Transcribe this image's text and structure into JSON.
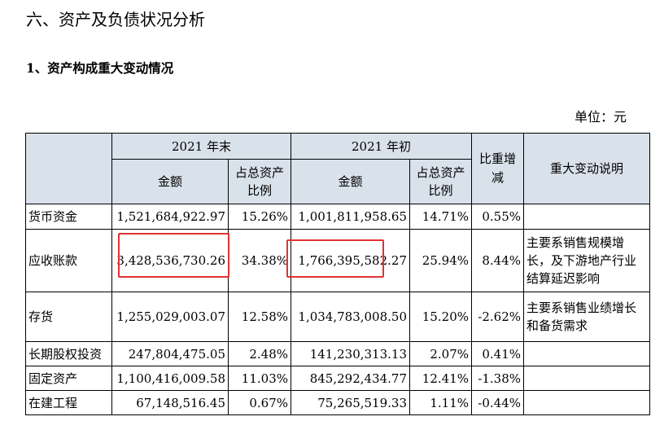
{
  "section_title": "六、资产及负债状况分析",
  "subsection_title": "1、资产构成重大变动情况",
  "unit": "单位：元",
  "table": {
    "header": {
      "year_end": "2021 年末",
      "year_start": "2021 年初",
      "amount": "金额",
      "ratio": "占总资产比例",
      "change": "比重增减",
      "explain": "重大变动说明"
    },
    "rows": [
      {
        "item": "货币资金",
        "end_amount": "1,521,684,922.97",
        "end_ratio": "15.26%",
        "start_amount": "1,001,811,958.65",
        "start_ratio": "14.71%",
        "change": "0.55%",
        "note": ""
      },
      {
        "item": "应收账款",
        "end_amount": "3,428,536,730.26",
        "end_ratio": "34.38%",
        "start_amount": "1,766,395,582.27",
        "start_ratio": "25.94%",
        "change": "8.44%",
        "note": "主要系销售规模增长，及下游地产行业结算延迟影响"
      },
      {
        "item": "存货",
        "end_amount": "1,255,029,003.07",
        "end_ratio": "12.58%",
        "start_amount": "1,034,783,008.50",
        "start_ratio": "15.20%",
        "change": "-2.62%",
        "note": "主要系销售业绩增长和备货需求"
      },
      {
        "item": "长期股权投资",
        "end_amount": "247,804,475.05",
        "end_ratio": "2.48%",
        "start_amount": "141,230,313.13",
        "start_ratio": "2.07%",
        "change": "0.41%",
        "note": ""
      },
      {
        "item": "固定资产",
        "end_amount": "1,100,416,009.58",
        "end_ratio": "11.03%",
        "start_amount": "845,292,434.77",
        "start_ratio": "12.41%",
        "change": "-1.38%",
        "note": ""
      },
      {
        "item": "在建工程",
        "end_amount": "67,148,516.45",
        "end_ratio": "0.67%",
        "start_amount": "75,265,519.33",
        "start_ratio": "1.11%",
        "change": "-0.44%",
        "note": ""
      }
    ]
  },
  "highlight_color": "#e03333"
}
